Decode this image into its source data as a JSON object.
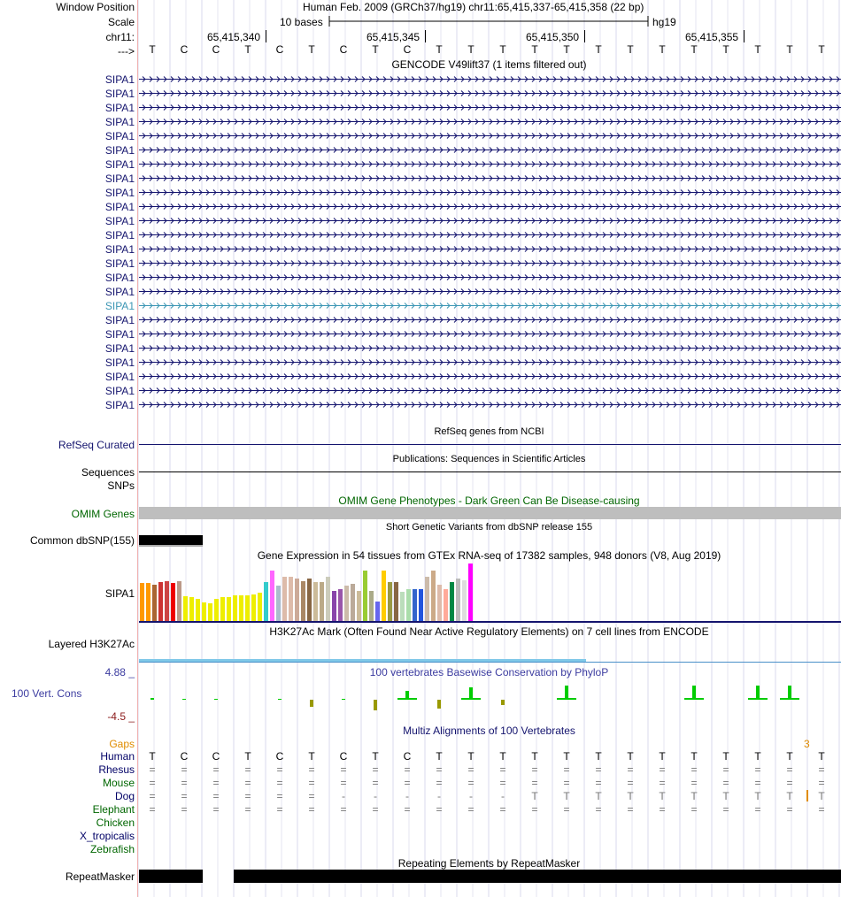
{
  "header": {
    "window_position_label": "Window Position",
    "window_position_value": "Human Feb. 2009 (GRCh37/hg19)   chr11:65,415,337-65,415,358 (22 bp)",
    "scale_label": "Scale",
    "scale_text": "10 bases",
    "scale_assembly": "hg19",
    "chr_label": "chr11:",
    "strand_label": "--->",
    "coords": [
      "65,415,340",
      "65,415,345",
      "65,415,350",
      "65,415,355"
    ]
  },
  "sequence": [
    "T",
    "C",
    "C",
    "T",
    "C",
    "T",
    "C",
    "T",
    "C",
    "T",
    "T",
    "T",
    "T",
    "T",
    "T",
    "T",
    "T",
    "T",
    "T",
    "T",
    "T",
    "T"
  ],
  "gencode": {
    "title": "GENCODE V49lift37 (1 items filtered out)",
    "genes": [
      "SIPA1",
      "SIPA1",
      "SIPA1",
      "SIPA1",
      "SIPA1",
      "SIPA1",
      "SIPA1",
      "SIPA1",
      "SIPA1",
      "SIPA1",
      "SIPA1",
      "SIPA1",
      "SIPA1",
      "SIPA1",
      "SIPA1",
      "SIPA1",
      "SIPA1",
      "SIPA1",
      "SIPA1",
      "SIPA1",
      "SIPA1",
      "SIPA1",
      "SIPA1",
      "SIPA1"
    ],
    "highlight_index": 16,
    "color": "#14146e",
    "highlight_color": "#3c96b4"
  },
  "refseq": {
    "title": "RefSeq genes from NCBI",
    "label": "RefSeq Curated"
  },
  "publications": {
    "title": "Publications: Sequences in Scientific Articles",
    "label": "Sequences"
  },
  "snps_label": "SNPs",
  "omim": {
    "title": "OMIM Gene Phenotypes - Dark Green Can Be Disease-causing",
    "label": "OMIM Genes"
  },
  "dbsnp": {
    "title": "Short Genetic Variants from dbSNP release 155",
    "label": "Common dbSNP(155)"
  },
  "gtex": {
    "title": "Gene Expression in 54 tissues from GTEx RNA-seq of 17382 samples, 948 donors (V8, Aug 2019)",
    "label": "SIPA1",
    "bars": [
      {
        "v": 0.65,
        "c": "#ff9900"
      },
      {
        "v": 0.65,
        "c": "#ff9900"
      },
      {
        "v": 0.62,
        "c": "#aa6633"
      },
      {
        "v": 0.66,
        "c": "#cc3333"
      },
      {
        "v": 0.68,
        "c": "#cc4444"
      },
      {
        "v": 0.65,
        "c": "#ee0000"
      },
      {
        "v": 0.68,
        "c": "#bb9988"
      },
      {
        "v": 0.42,
        "c": "#eeee00"
      },
      {
        "v": 0.41,
        "c": "#eeee00"
      },
      {
        "v": 0.38,
        "c": "#eeee00"
      },
      {
        "v": 0.32,
        "c": "#eeee00"
      },
      {
        "v": 0.3,
        "c": "#eeee00"
      },
      {
        "v": 0.38,
        "c": "#eeee00"
      },
      {
        "v": 0.41,
        "c": "#eeee00"
      },
      {
        "v": 0.41,
        "c": "#eeee00"
      },
      {
        "v": 0.44,
        "c": "#eeee00"
      },
      {
        "v": 0.44,
        "c": "#eeee00"
      },
      {
        "v": 0.44,
        "c": "#eeee00"
      },
      {
        "v": 0.46,
        "c": "#eeee00"
      },
      {
        "v": 0.48,
        "c": "#eeee00"
      },
      {
        "v": 0.66,
        "c": "#33cccc"
      },
      {
        "v": 0.86,
        "c": "#ff66ff"
      },
      {
        "v": 0.6,
        "c": "#aabbcc"
      },
      {
        "v": 0.75,
        "c": "#ddbbaa"
      },
      {
        "v": 0.75,
        "c": "#ddbbaa"
      },
      {
        "v": 0.72,
        "c": "#ccaa99"
      },
      {
        "v": 0.68,
        "c": "#aa8866"
      },
      {
        "v": 0.72,
        "c": "#886644"
      },
      {
        "v": 0.66,
        "c": "#ccbb99"
      },
      {
        "v": 0.66,
        "c": "#bbaa88"
      },
      {
        "v": 0.75,
        "c": "#ccccbb"
      },
      {
        "v": 0.52,
        "c": "#8844aa"
      },
      {
        "v": 0.54,
        "c": "#9955aa"
      },
      {
        "v": 0.6,
        "c": "#ccbbaa"
      },
      {
        "v": 0.64,
        "c": "#bbaa99"
      },
      {
        "v": 0.52,
        "c": "#ccbb99"
      },
      {
        "v": 0.86,
        "c": "#99cc33"
      },
      {
        "v": 0.52,
        "c": "#aaaa88"
      },
      {
        "v": 0.34,
        "c": "#6666ee"
      },
      {
        "v": 0.86,
        "c": "#ffcc00"
      },
      {
        "v": 0.66,
        "c": "#999944"
      },
      {
        "v": 0.66,
        "c": "#886644"
      },
      {
        "v": 0.5,
        "c": "#bbddbb"
      },
      {
        "v": 0.54,
        "c": "#aaddaa"
      },
      {
        "v": 0.54,
        "c": "#3366cc"
      },
      {
        "v": 0.54,
        "c": "#2255dd"
      },
      {
        "v": 0.76,
        "c": "#ccbbaa"
      },
      {
        "v": 0.86,
        "c": "#ccaa88"
      },
      {
        "v": 0.62,
        "c": "#ddbbaa"
      },
      {
        "v": 0.54,
        "c": "#ffaa99"
      },
      {
        "v": 0.66,
        "c": "#008844"
      },
      {
        "v": 0.72,
        "c": "#bbbbbb"
      },
      {
        "v": 0.7,
        "c": "#dddddd"
      },
      {
        "v": 0.98,
        "c": "#ff00ff"
      }
    ]
  },
  "h3k27ac": {
    "title": "H3K27Ac Mark (Often Found Near Active Regulatory Elements) on 7 cell lines from ENCODE",
    "label": "Layered H3K27Ac"
  },
  "phylop": {
    "title": "100 vertebrates Basewise Conservation by PhyloP",
    "label": "100 Vert. Cons",
    "max": "4.88 _",
    "min": "-4.5 _",
    "values": [
      0.2,
      0.1,
      0.1,
      0.0,
      0.1,
      -0.8,
      0.1,
      -1.2,
      1.0,
      -1.0,
      1.4,
      -0.6,
      0,
      1.6,
      0,
      0,
      0,
      1.6,
      0,
      1.6,
      1.6,
      0
    ]
  },
  "multiz": {
    "title": "Multiz Alignments of 100 Vertebrates",
    "gaps_label": "Gaps",
    "gaps_count": "3",
    "species": [
      {
        "name": "Human",
        "color": "#000066",
        "row": [
          "T",
          "C",
          "C",
          "T",
          "C",
          "T",
          "C",
          "T",
          "C",
          "T",
          "T",
          "T",
          "T",
          "T",
          "T",
          "T",
          "T",
          "T",
          "T",
          "T",
          "T",
          "T"
        ]
      },
      {
        "name": "Rhesus",
        "color": "#000066",
        "row": [
          "=",
          "=",
          "=",
          "=",
          "=",
          "=",
          "=",
          "=",
          "=",
          "=",
          "=",
          "=",
          "=",
          "=",
          "=",
          "=",
          "=",
          "=",
          "=",
          "=",
          "=",
          "="
        ]
      },
      {
        "name": "Mouse",
        "color": "#006600",
        "row": [
          "=",
          "=",
          "=",
          "=",
          "=",
          "=",
          "=",
          "=",
          "=",
          "=",
          "=",
          "=",
          "=",
          "=",
          "=",
          "=",
          "=",
          "=",
          "=",
          "=",
          "=",
          "="
        ]
      },
      {
        "name": "Dog",
        "color": "#000066",
        "row": [
          "=",
          "=",
          "=",
          "=",
          "=",
          "=",
          "-",
          "-",
          "-",
          "-",
          "-",
          "-",
          "T",
          "T",
          "T",
          "T",
          "T",
          "T",
          "T",
          "T",
          "T",
          "T"
        ]
      },
      {
        "name": "Elephant",
        "color": "#006600",
        "row": [
          "=",
          "=",
          "=",
          "=",
          "=",
          "=",
          "=",
          "=",
          "=",
          "=",
          "=",
          "=",
          "=",
          "=",
          "=",
          "=",
          "=",
          "=",
          "=",
          "=",
          "=",
          "="
        ]
      },
      {
        "name": "Chicken",
        "color": "#006600",
        "row": []
      },
      {
        "name": "X_tropicalis",
        "color": "#000066",
        "row": []
      },
      {
        "name": "Zebrafish",
        "color": "#006600",
        "row": []
      }
    ]
  },
  "repeatmasker": {
    "title": "Repeating Elements by RepeatMasker",
    "label": "RepeatMasker"
  }
}
